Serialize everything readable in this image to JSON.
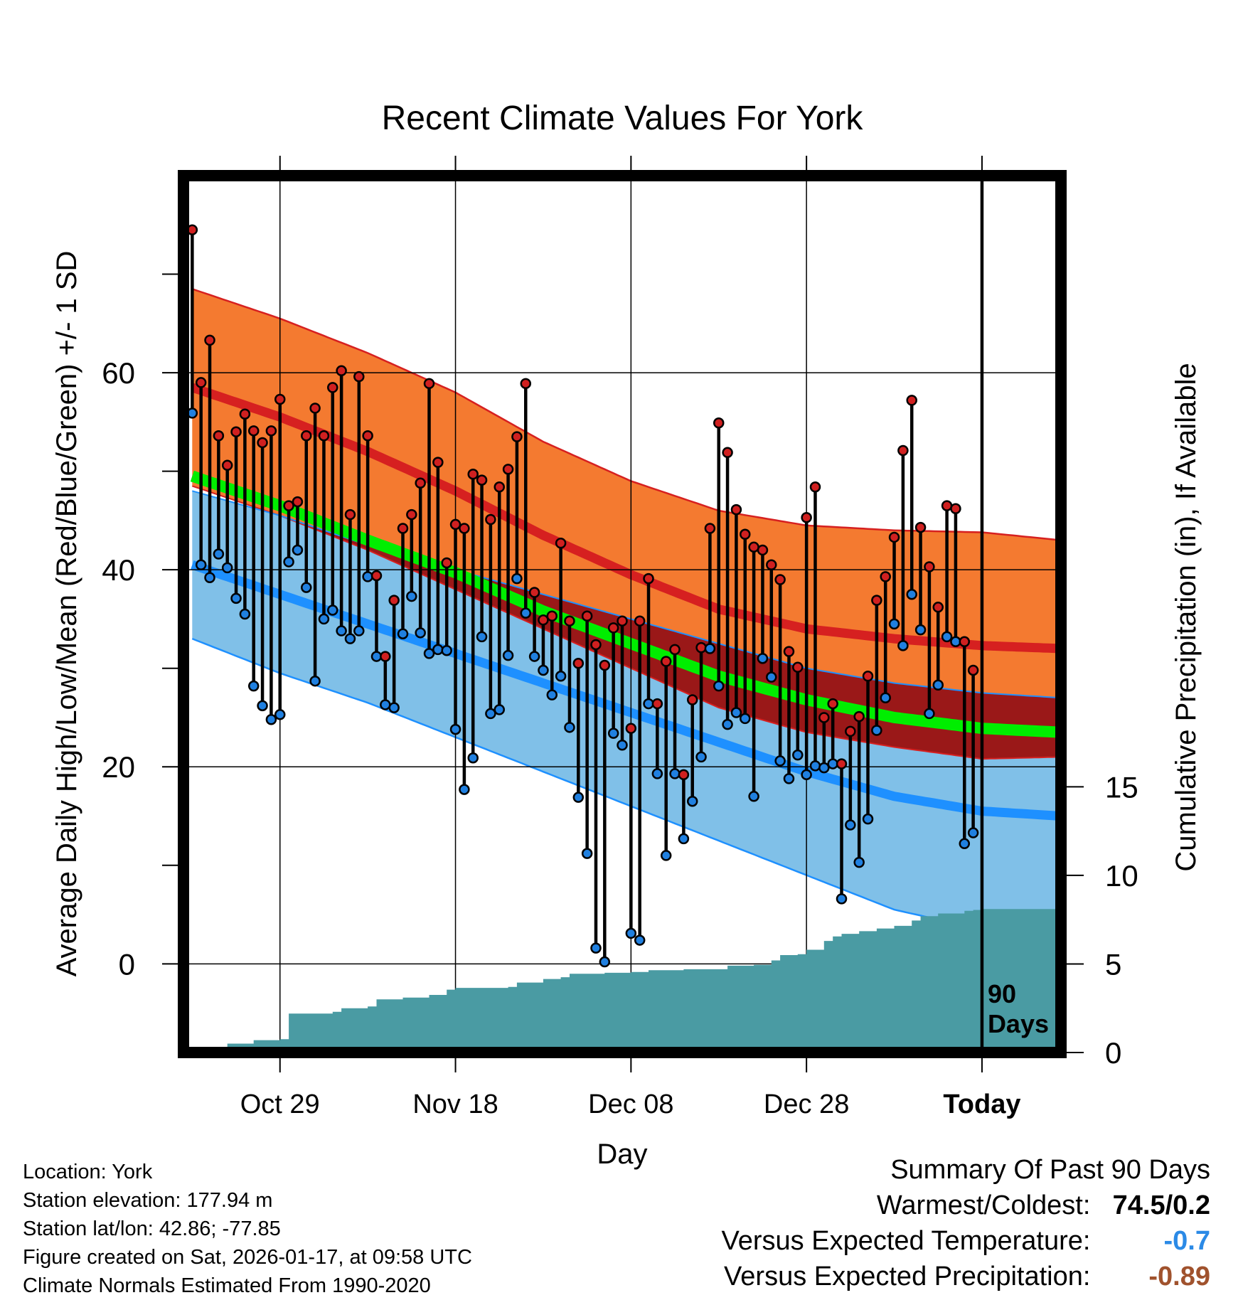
{
  "chart_data": {
    "type": "line",
    "title": "Recent Climate Values For York",
    "xlabel": "Day",
    "ylabel": "Average Daily High/Low/Mean (Red/Blue/Green) +/- 1 SD",
    "y2label": "Cumulative Precipitation (in), If Available",
    "x_ticks": [
      "Oct 29",
      "Nov 18",
      "Dec 08",
      "Dec 28",
      "Today"
    ],
    "x_tick_days": [
      10,
      30,
      50,
      70,
      90
    ],
    "y_ticks": [
      0,
      20,
      40,
      60
    ],
    "y2_ticks": [
      0,
      5,
      10,
      15
    ],
    "ylim": [
      -9,
      80
    ],
    "y2lim": [
      0,
      49.5
    ],
    "xlim": [
      -1,
      99
    ],
    "today_label_line1": "90",
    "today_label_line2": "Days",
    "normals": {
      "days": [
        0,
        10,
        20,
        30,
        40,
        50,
        60,
        70,
        80,
        90,
        99
      ],
      "high_mean": [
        58.5,
        55.5,
        52.0,
        48.0,
        43.5,
        39.5,
        36.0,
        34.0,
        33.0,
        32.3,
        32.0
      ],
      "high_sd": [
        10,
        10,
        10,
        10,
        9.5,
        9.5,
        10,
        10.5,
        11,
        11.5,
        11
      ],
      "low_mean": [
        40.5,
        37.5,
        34.5,
        31.5,
        28.5,
        25.5,
        22.5,
        19.5,
        17.0,
        15.5,
        15.0
      ],
      "low_sd": [
        7.5,
        8.0,
        8.0,
        8.5,
        9.0,
        9.5,
        10.0,
        10.5,
        11.5,
        12.0,
        12.0
      ],
      "mean": [
        49.5,
        46.5,
        43.0,
        39.7,
        35.8,
        32.5,
        29.2,
        26.8,
        25.0,
        23.9,
        23.5
      ]
    },
    "series": [
      {
        "name": "High",
        "values": [
          74.5,
          59,
          63.3,
          53.6,
          50.6,
          54,
          55.8,
          54.1,
          52.9,
          54.1,
          57.3,
          46.5,
          46.9,
          53.6,
          56.4,
          53.6,
          58.5,
          60.2,
          45.6,
          59.6,
          53.6,
          39.4,
          31.2,
          36.9,
          44.2,
          45.6,
          48.8,
          58.9,
          50.9,
          40.7,
          44.6,
          44.2,
          49.7,
          49.1,
          45.1,
          48.4,
          50.2,
          53.5,
          58.9,
          37.7,
          34.9,
          35.3,
          42.7,
          34.8,
          30.5,
          35.3,
          32.4,
          30.3,
          34.1,
          34.8,
          23.9,
          34.8,
          39.1,
          26.4,
          30.7,
          31.9,
          19.2,
          26.8,
          32.1,
          44.2,
          54.9,
          51.9,
          46.1,
          43.6,
          42.3,
          42,
          40.5,
          39,
          31.7,
          30.1,
          45.3,
          48.4,
          25,
          26.4,
          20.3,
          23.6,
          25.1,
          29.2,
          36.9,
          39.3,
          43.3,
          52.1,
          57.2,
          44.3,
          40.3,
          36.2,
          46.5,
          46.2,
          32.7,
          29.8
        ]
      },
      {
        "name": "Low",
        "values": [
          55.9,
          40.5,
          39.2,
          41.6,
          40.2,
          37.1,
          35.5,
          28.2,
          26.2,
          24.8,
          25.3,
          40.8,
          42,
          38.2,
          28.7,
          35,
          35.9,
          33.8,
          33,
          33.8,
          39.3,
          31.2,
          26.3,
          26,
          33.5,
          37.3,
          33.6,
          31.5,
          31.9,
          31.8,
          23.8,
          17.7,
          20.9,
          33.2,
          25.4,
          25.8,
          31.3,
          39.1,
          35.6,
          31.2,
          29.8,
          27.3,
          29.2,
          24,
          16.9,
          11.2,
          1.6,
          0.2,
          23.4,
          22.2,
          3.1,
          2.4,
          26.4,
          19.3,
          11,
          19.3,
          12.7,
          16.5,
          21,
          32,
          28.2,
          24.3,
          25.5,
          24.9,
          17,
          31,
          29.1,
          20.6,
          18.8,
          21.2,
          19.2,
          20.1,
          19.9,
          20.3,
          6.6,
          14.1,
          10.3,
          14.7,
          23.7,
          27,
          34.5,
          32.3,
          37.5,
          33.9,
          25.4,
          28.3,
          33.2,
          32.7,
          12.2,
          13.3
        ]
      }
    ],
    "precip": {
      "days": [
        0,
        1,
        3,
        4,
        7,
        10,
        11,
        16,
        17,
        20,
        21,
        24,
        27,
        29,
        30,
        36,
        37,
        40,
        42,
        43,
        47,
        50,
        52,
        56,
        61,
        64,
        66,
        67,
        69,
        70,
        72,
        73,
        74,
        76,
        78,
        80,
        82,
        83,
        85,
        88,
        89,
        90,
        99
      ],
      "values": [
        0,
        0.2,
        0.3,
        0.5,
        0.7,
        0.75,
        2.2,
        2.3,
        2.5,
        2.6,
        3.0,
        3.1,
        3.25,
        3.55,
        3.65,
        3.7,
        3.95,
        4.15,
        4.25,
        4.45,
        4.5,
        4.55,
        4.65,
        4.7,
        4.9,
        4.95,
        5.2,
        5.5,
        5.55,
        5.8,
        6.3,
        6.55,
        6.7,
        6.85,
        7.0,
        7.15,
        7.45,
        7.7,
        7.85,
        8.0,
        8.05,
        8.1,
        8.1
      ]
    },
    "colors": {
      "high_band": "#f47a30",
      "high_line": "#d62020",
      "low_band": "#80c0e8",
      "low_line": "#1e90ff",
      "overlap": "#9a1818",
      "mean_line": "#00ee00",
      "precip": "#4a9ba3",
      "high_dot": "#d02020",
      "low_dot": "#2080e0"
    }
  },
  "metadata": {
    "location": "Location: York",
    "elevation": "Station elevation: 177.94 m",
    "latlon": "Station lat/lon: 42.86; -77.85",
    "created": "Figure created on Sat, 2026-01-17, at 09:58 UTC",
    "normals": "Climate Normals Estimated From 1990-2020"
  },
  "summary": {
    "heading": "Summary Of Past 90 Days",
    "warmest_label": "Warmest/Coldest:",
    "warmest_value": "74.5/0.2",
    "temp_label": "Versus Expected Temperature:",
    "temp_value": "-0.7",
    "temp_color": "#2b8ae6",
    "precip_label": "Versus Expected Precipitation:",
    "precip_value": "-0.89",
    "precip_color": "#a0522d"
  }
}
